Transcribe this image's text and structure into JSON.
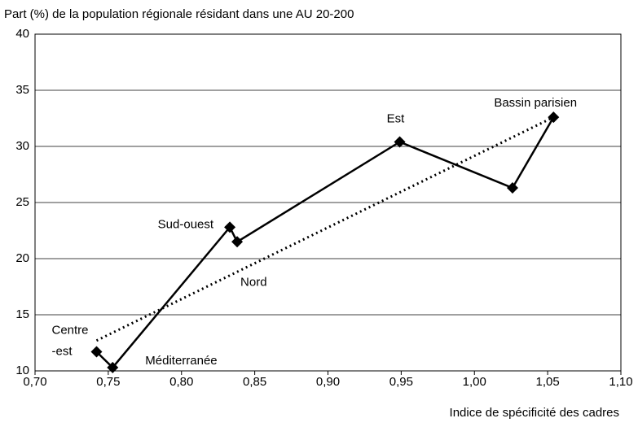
{
  "chart_data": {
    "type": "line",
    "ylabel": "Part (%) de la population régionale résidant dans une AU 20-200",
    "xlabel": "Indice de spécificité des cadres",
    "x": [
      0.742,
      0.753,
      0.833,
      0.838,
      0.949,
      1.026,
      1.054
    ],
    "values": [
      11.7,
      10.3,
      22.8,
      21.5,
      30.4,
      26.3,
      32.6
    ],
    "point_labels": [
      [
        "Centre",
        "-est"
      ],
      [
        "Méditerranée"
      ],
      [
        "Sud-ouest"
      ],
      [
        "Nord"
      ],
      [
        "Est"
      ],
      null,
      [
        "Bassin parisien"
      ]
    ],
    "color": "#000000",
    "trendline": {
      "x": [
        0.742,
        1.054
      ],
      "values": [
        12.7,
        32.6
      ],
      "style": "dotted"
    },
    "xlim": [
      0.7,
      1.1
    ],
    "xticks": [
      {
        "value": 0.7,
        "label": "0,70"
      },
      {
        "value": 0.75,
        "label": "0,75"
      },
      {
        "value": 0.8,
        "label": "0,80"
      },
      {
        "value": 0.85,
        "label": "0,85"
      },
      {
        "value": 0.9,
        "label": "0,90"
      },
      {
        "value": 0.95,
        "label": "0,95"
      },
      {
        "value": 1.0,
        "label": "1,00"
      },
      {
        "value": 1.05,
        "label": "1,05"
      },
      {
        "value": 1.1,
        "label": "1,10"
      }
    ],
    "ylim": [
      10,
      40
    ],
    "yticks": [
      10,
      15,
      20,
      25,
      30,
      35,
      40
    ],
    "grid": true
  }
}
